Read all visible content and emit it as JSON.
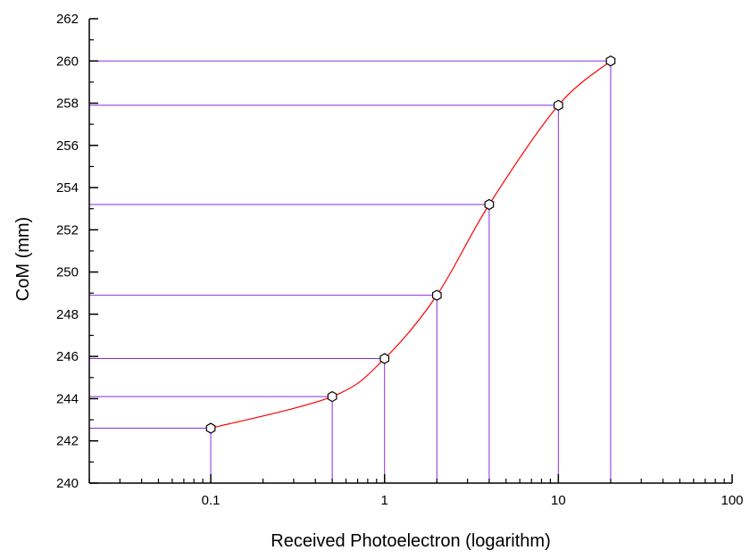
{
  "chart_data": {
    "type": "line",
    "title": "",
    "xlabel": "Received Photoelectron (logarithm)",
    "ylabel": "CoM (mm)",
    "x_scale": "log",
    "xlim": [
      0.02,
      100
    ],
    "ylim": [
      240,
      262
    ],
    "x_ticks": [
      0.1,
      1,
      10,
      100
    ],
    "x_tick_labels": [
      "0.1",
      "1",
      "10",
      "100"
    ],
    "y_ticks": [
      240,
      242,
      244,
      246,
      248,
      250,
      252,
      254,
      256,
      258,
      260,
      262
    ],
    "y_tick_labels": [
      "240",
      "242",
      "244",
      "246",
      "248",
      "250",
      "252",
      "254",
      "256",
      "258",
      "260",
      "262"
    ],
    "grid": false,
    "legend": "none",
    "series": [
      {
        "x": [
          0.1,
          0.5,
          1,
          2,
          4,
          10,
          20
        ],
        "y": [
          242.6,
          244.1,
          245.9,
          248.9,
          253.2,
          257.9,
          260.0
        ],
        "marker": "hexagon-open",
        "fit_curve": true
      }
    ],
    "drop_lines": true,
    "colors": {
      "curve": "#ff0000",
      "drop_lines": "#8a2be2",
      "markers": "#000000",
      "axes": "#000000"
    }
  }
}
